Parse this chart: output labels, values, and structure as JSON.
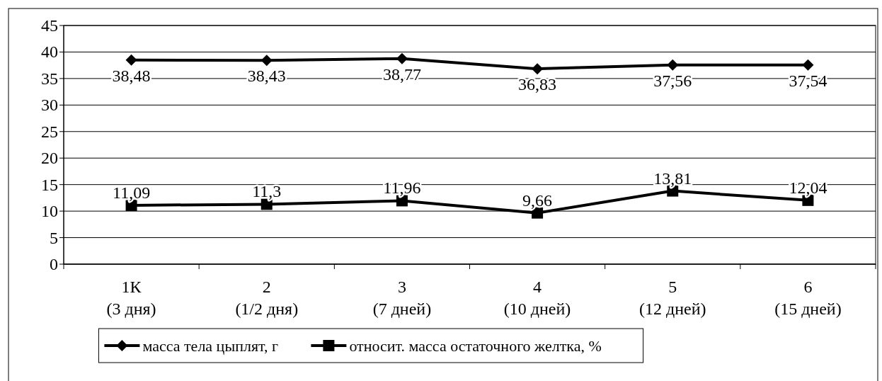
{
  "chart_data": {
    "type": "line",
    "categories": [
      "1К\n(3 дня)",
      "2\n(1/2 дня)",
      "3\n(7 дней)",
      "4\n(10 дней)",
      "5\n(12 дней)",
      "6\n(15 дней)"
    ],
    "series": [
      {
        "name": "масса тела цыплят, г",
        "color": "#000000",
        "marker": "diamond",
        "values": [
          38.48,
          38.43,
          38.77,
          36.83,
          37.56,
          37.54
        ],
        "value_labels": [
          "38,48",
          "38,43",
          "38,77",
          "36,83",
          "37,56",
          "37,54"
        ]
      },
      {
        "name": "относит. масса остаточного желтка, %",
        "color": "#000000",
        "marker": "square",
        "values": [
          11.09,
          11.3,
          11.96,
          9.66,
          13.81,
          12.04
        ],
        "value_labels": [
          "11,09",
          "11,3",
          "11,96",
          "9,66",
          "13,81",
          "12,04"
        ]
      }
    ],
    "ylim": [
      0,
      45
    ],
    "yticks": [
      0,
      5,
      10,
      15,
      20,
      25,
      30,
      35,
      40,
      45
    ],
    "grid": "y",
    "legend": "bottom",
    "line_style": "solid"
  }
}
